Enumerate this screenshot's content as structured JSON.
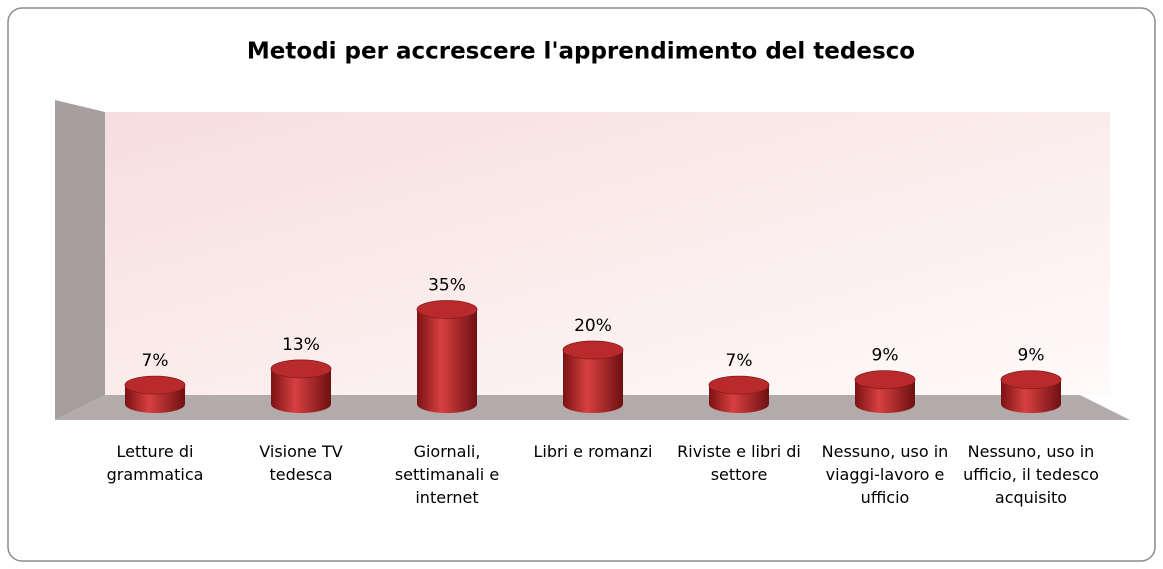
{
  "chart_data": {
    "type": "bar3d",
    "title": "Metodi per accrescere l'apprendimento del tedesco",
    "categories": [
      "Letture di grammatica",
      "Visione TV tedesca",
      "Giornali, settimanali e internet",
      "Libri e romanzi",
      "Riviste e libri di settore",
      "Nessuno, uso in viaggi-lavoro e ufficio",
      "Nessuno, uso in ufficio, il tedesco acquisito"
    ],
    "values": [
      7,
      13,
      35,
      20,
      7,
      9,
      9
    ],
    "value_labels": [
      "7%",
      "13%",
      "35%",
      "20%",
      "7%",
      "9%",
      "9%"
    ],
    "color": "#c0282a"
  }
}
